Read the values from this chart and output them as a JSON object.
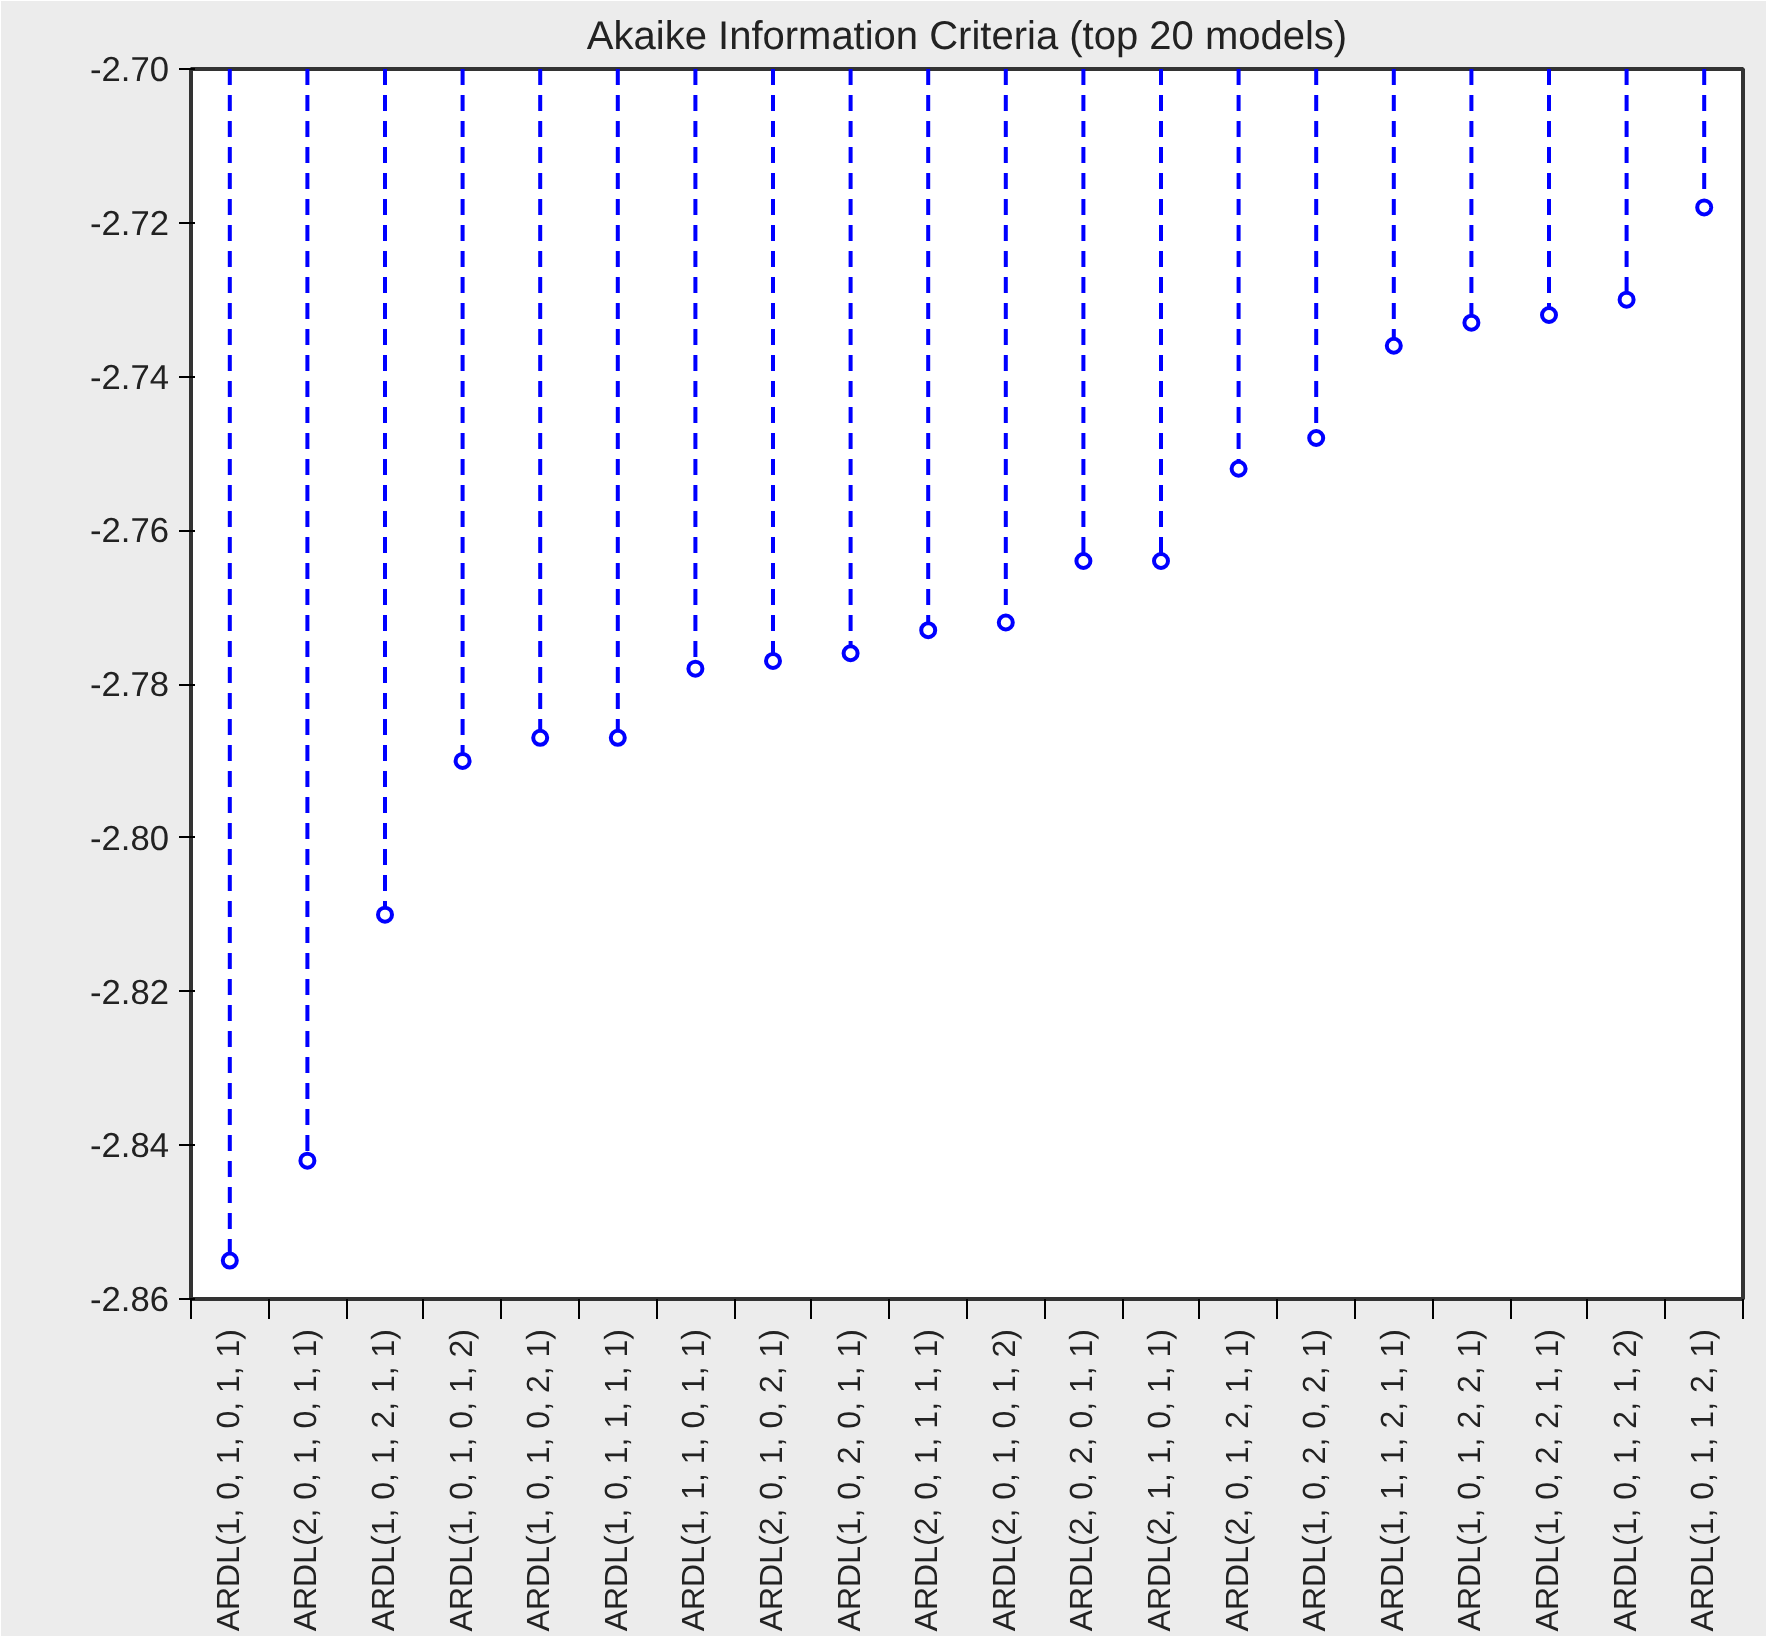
{
  "chart_data": {
    "type": "lollipop",
    "title": "Akaike Information Criteria (top 20 models)",
    "categories": [
      "ARDL(1, 0, 1, 0, 1, 1)",
      "ARDL(2, 0, 1, 0, 1, 1)",
      "ARDL(1, 0, 1, 2, 1, 1)",
      "ARDL(1, 0, 1, 0, 1, 2)",
      "ARDL(1, 0, 1, 0, 2, 1)",
      "ARDL(1, 0, 1, 1, 1, 1)",
      "ARDL(1, 1, 1, 0, 1, 1)",
      "ARDL(2, 0, 1, 0, 2, 1)",
      "ARDL(1, 0, 2, 0, 1, 1)",
      "ARDL(2, 0, 1, 1, 1, 1)",
      "ARDL(2, 0, 1, 0, 1, 2)",
      "ARDL(2, 0, 2, 0, 1, 1)",
      "ARDL(2, 1, 1, 0, 1, 1)",
      "ARDL(2, 0, 1, 2, 1, 1)",
      "ARDL(1, 0, 2, 0, 2, 1)",
      "ARDL(1, 1, 1, 2, 1, 1)",
      "ARDL(1, 0, 1, 2, 2, 1)",
      "ARDL(1, 0, 2, 2, 1, 1)",
      "ARDL(1, 0, 1, 2, 1, 2)",
      "ARDL(1, 0, 1, 1, 2, 1)"
    ],
    "values": [
      -2.855,
      -2.842,
      -2.81,
      -2.79,
      -2.787,
      -2.787,
      -2.778,
      -2.777,
      -2.776,
      -2.773,
      -2.772,
      -2.764,
      -2.764,
      -2.752,
      -2.748,
      -2.736,
      -2.733,
      -2.732,
      -2.73,
      -2.718
    ],
    "color": "#0000ff",
    "marker": "circle",
    "line_style": "dashed",
    "ylim": [
      -2.86,
      -2.7
    ],
    "yticks": [
      {
        "value": -2.86,
        "label": "-2.86"
      },
      {
        "value": -2.84,
        "label": "-2.84"
      },
      {
        "value": -2.82,
        "label": "-2.82"
      },
      {
        "value": -2.8,
        "label": "-2.80"
      },
      {
        "value": -2.78,
        "label": "-2.78"
      },
      {
        "value": -2.76,
        "label": "-2.76"
      },
      {
        "value": -2.74,
        "label": "-2.74"
      },
      {
        "value": -2.72,
        "label": "-2.72"
      },
      {
        "value": -2.7,
        "label": "-2.70"
      }
    ]
  }
}
